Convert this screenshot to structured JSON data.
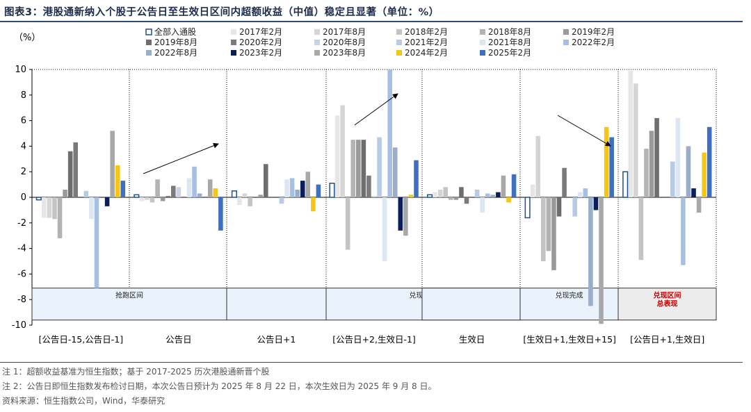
{
  "title": "图表3：港股通新纳入个股于公告日至生效日区间内超额收益（中值）稳定且显著（单位：%）",
  "notes": [
    "注 1：超额收益基准为恒生指数；基于 2017-2025 历次港股通新晋个股",
    "注 2：公告日即恒生指数发布检讨日期，本次公告日预计为 2025 年 8 月 22 日，本次生效日为 2025 年 9 月 8 日。",
    "资料来源：恒生指数公司，Wind，华泰研究"
  ],
  "chart_data": {
    "type": "bar",
    "ylabel": "（%）",
    "ylim": [
      -10,
      10
    ],
    "yticks": [
      10,
      8,
      6,
      4,
      2,
      0,
      -2,
      -4,
      -6,
      -8,
      -10
    ],
    "categories": [
      "[公告日-15,公告日-1]",
      "公告日",
      "公告日+1",
      "[公告日+2,生效日-1]",
      "生效日",
      "[生效日+1,生效日+15]",
      "[公告日+1,生效日]"
    ],
    "bands": [
      {
        "label": "抢跑区间",
        "style": "blue"
      },
      {
        "label": "兑现区间",
        "style": "blue"
      },
      {
        "label": "兑现完成",
        "style": "blue"
      },
      {
        "label": "兑现区间\n总表现",
        "style": "red"
      }
    ],
    "series": [
      {
        "name": "全部入通股",
        "color": "#ffffff",
        "stroke": "#1f4e8c",
        "values": [
          -0.2,
          0.2,
          0.5,
          1.1,
          0.2,
          -1.6,
          2.0
        ]
      },
      {
        "name": "2017年2月",
        "color": "#e6e6e6",
        "values": [
          -1.6,
          -0.3,
          -0.6,
          6.4,
          0.4,
          1.0,
          9.9
        ]
      },
      {
        "name": "2017年8月",
        "color": "#d5d5d5",
        "values": [
          -1.6,
          -0.2,
          0.3,
          7.2,
          0.6,
          4.8,
          8.9
        ]
      },
      {
        "name": "2018年2月",
        "color": "#c4c4c4",
        "values": [
          -1.7,
          -0.4,
          -0.7,
          -4.1,
          0.8,
          -5.0,
          -4.9
        ]
      },
      {
        "name": "2018年8月",
        "color": "#b3b3b3",
        "values": [
          -3.2,
          1.4,
          0.0,
          4.5,
          -0.2,
          -4.2,
          3.8
        ]
      },
      {
        "name": "2019年2月",
        "color": "#9a9a9a",
        "values": [
          0.6,
          -0.3,
          0.2,
          4.5,
          -0.2,
          -5.7,
          5.2
        ]
      },
      {
        "name": "2019年8月",
        "color": "#6e6e6e",
        "values": [
          3.6,
          0.1,
          2.6,
          4.5,
          0.8,
          -1.5,
          6.2
        ]
      },
      {
        "name": "2020年2月",
        "color": "#7a7a7a",
        "values": [
          4.3,
          0.9,
          0.0,
          1.7,
          -0.5,
          2.3,
          0.0
        ]
      },
      {
        "name": "2020年8月",
        "color": "#c8d4e6",
        "values": [
          0.0,
          0.8,
          0.0,
          0.1,
          0.0,
          0.0,
          0.0
        ]
      },
      {
        "name": "2021年2月",
        "color": "#b6cbe6",
        "values": [
          0.5,
          0.0,
          -0.5,
          4.7,
          0.6,
          -1.5,
          2.8
        ]
      },
      {
        "name": "2021年8月",
        "color": "#dde6f3",
        "values": [
          -1.7,
          1.5,
          1.4,
          -5.0,
          -1.2,
          0.4,
          6.2
        ]
      },
      {
        "name": "2022年2月",
        "color": "#a6bfe4",
        "values": [
          -7.1,
          2.4,
          1.5,
          10.0,
          0.3,
          0.7,
          -5.3
        ]
      },
      {
        "name": "2022年8月",
        "color": "#9aaecb",
        "values": [
          0.0,
          0.3,
          0.6,
          3.9,
          0.2,
          -8.5,
          4.0
        ]
      },
      {
        "name": "2023年2月",
        "color": "#0b1e5a",
        "values": [
          -0.7,
          0.0,
          1.3,
          -2.6,
          0.4,
          -1.0,
          0.7
        ]
      },
      {
        "name": "2023年8月",
        "color": "#a8a8a8",
        "values": [
          5.2,
          1.4,
          2.0,
          -3.0,
          1.7,
          -9.9,
          -1.2
        ]
      },
      {
        "name": "2024年2月",
        "color": "#f5c518",
        "values": [
          2.5,
          0.7,
          -1.1,
          0.2,
          -0.4,
          5.5,
          3.5
        ]
      },
      {
        "name": "2025年2月",
        "color": "#3e6fc0",
        "values": [
          1.3,
          -2.6,
          1.0,
          2.9,
          1.8,
          4.7,
          5.5
        ]
      }
    ]
  }
}
